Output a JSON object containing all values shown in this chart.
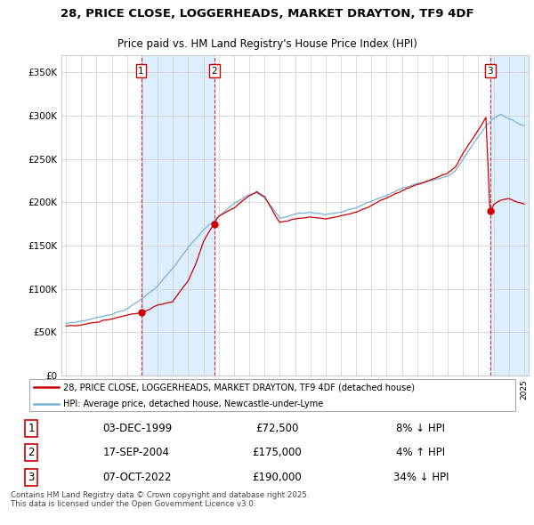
{
  "title": "28, PRICE CLOSE, LOGGERHEADS, MARKET DRAYTON, TF9 4DF",
  "subtitle": "Price paid vs. HM Land Registry's House Price Index (HPI)",
  "red_label": "28, PRICE CLOSE, LOGGERHEADS, MARKET DRAYTON, TF9 4DF (detached house)",
  "blue_label": "HPI: Average price, detached house, Newcastle-under-Lyme",
  "transactions": [
    {
      "num": 1,
      "date": "03-DEC-1999",
      "price": "£72,500",
      "hpi": "8% ↓ HPI",
      "year": 1999.92,
      "value": 72500
    },
    {
      "num": 2,
      "date": "17-SEP-2004",
      "price": "£175,000",
      "hpi": "4% ↑ HPI",
      "year": 2004.71,
      "value": 175000
    },
    {
      "num": 3,
      "date": "07-OCT-2022",
      "price": "£190,000",
      "hpi": "34% ↓ HPI",
      "year": 2022.77,
      "value": 190000
    }
  ],
  "footer": "Contains HM Land Registry data © Crown copyright and database right 2025.\nThis data is licensed under the Open Government Licence v3.0.",
  "ylim": [
    0,
    370000
  ],
  "yticks": [
    0,
    50000,
    100000,
    150000,
    200000,
    250000,
    300000,
    350000
  ],
  "red_color": "#cc0000",
  "blue_color": "#7ab0d4",
  "shade_color": "#ddeeff",
  "background_color": "#ffffff",
  "grid_color": "#cccccc",
  "xlim_left": 1994.7,
  "xlim_right": 2025.3
}
